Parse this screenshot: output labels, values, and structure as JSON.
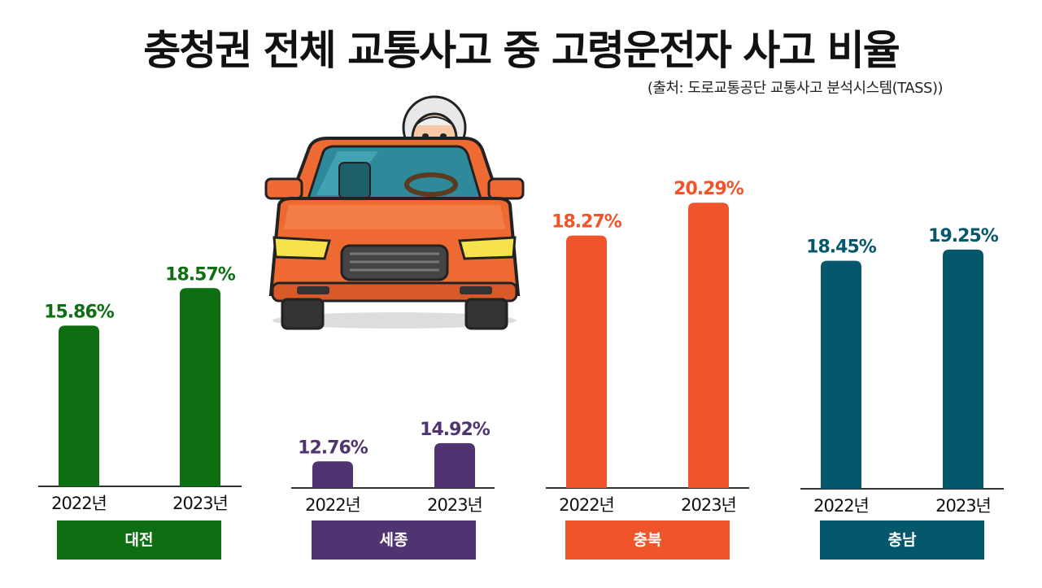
{
  "title": "충청권 전체 교통사고 중 고령운전자 사고 비율",
  "source": "(출처: 도로교통공단 교통사고 분석시스템(TASS))",
  "chart_data": {
    "type": "bar",
    "categories": [
      "2022년",
      "2023년"
    ],
    "series": [
      {
        "name": "대전",
        "values": [
          15.86,
          18.57
        ],
        "labels": [
          "15.86%",
          "18.57%"
        ],
        "color": "#0d6e12"
      },
      {
        "name": "세종",
        "values": [
          12.76,
          14.92
        ],
        "labels": [
          "12.76%",
          "14.92%"
        ],
        "color": "#4f3471"
      },
      {
        "name": "충북",
        "values": [
          18.27,
          20.29
        ],
        "labels": [
          "18.27%",
          "20.29%"
        ],
        "color": "#f0542a"
      },
      {
        "name": "충남",
        "values": [
          18.45,
          19.25
        ],
        "labels": [
          "18.45%",
          "19.25%"
        ],
        "color": "#05576b"
      }
    ],
    "grid": false,
    "legend": "none"
  },
  "illustration": {
    "icon": "elderly-driver-car-icon",
    "car_color": "#ef6a33"
  }
}
